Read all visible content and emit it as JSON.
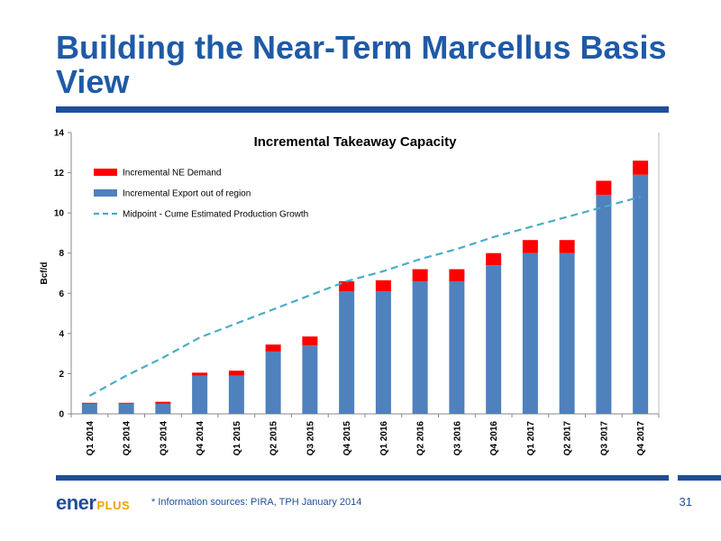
{
  "slide": {
    "title": "Building the Near-Term Marcellus Basis View",
    "footnote": "* Information sources: PIRA, TPH January 2014",
    "page_number": "31",
    "logo": {
      "part1": "ener",
      "part2": "PLUS"
    }
  },
  "colors": {
    "title": "#1f5aa6",
    "rule": "#1f4e9a",
    "export_bar": "#4f81bd",
    "demand_bar": "#ff0000",
    "production_line": "#4bacc6"
  },
  "chart_data": {
    "type": "bar",
    "stacked": true,
    "title": "Incremental Takeaway Capacity",
    "ylabel": "Bcf/d",
    "xlabel": "",
    "ylim": [
      0,
      14
    ],
    "yticks": [
      0,
      2,
      4,
      6,
      8,
      10,
      12,
      14
    ],
    "grid": false,
    "legend_position": "top-left",
    "categories": [
      "Q1 2014",
      "Q2 2014",
      "Q3 2014",
      "Q4 2014",
      "Q1 2015",
      "Q2 2015",
      "Q3 2015",
      "Q4 2015",
      "Q1 2016",
      "Q2 2016",
      "Q3 2016",
      "Q4 2016",
      "Q1 2017",
      "Q2 2017",
      "Q3 2017",
      "Q4 2017"
    ],
    "series": [
      {
        "name": "Incremental Export out of region",
        "kind": "bar",
        "values": [
          0.5,
          0.5,
          0.5,
          1.9,
          1.9,
          3.1,
          3.4,
          6.1,
          6.1,
          6.6,
          6.6,
          7.4,
          8.0,
          8.0,
          10.9,
          11.9
        ]
      },
      {
        "name": "Incremental NE Demand",
        "kind": "bar",
        "values": [
          0.05,
          0.05,
          0.1,
          0.15,
          0.25,
          0.35,
          0.45,
          0.5,
          0.55,
          0.6,
          0.6,
          0.6,
          0.65,
          0.65,
          0.7,
          0.7
        ]
      },
      {
        "name": "Midpoint - Cume Estimated Production Growth",
        "kind": "line",
        "values": [
          0.9,
          1.9,
          2.8,
          3.8,
          4.5,
          5.2,
          5.9,
          6.6,
          7.1,
          7.7,
          8.2,
          8.8,
          9.3,
          9.8,
          10.3,
          10.8
        ]
      }
    ],
    "legend_order": [
      "Incremental NE Demand",
      "Incremental Export out of region",
      "Midpoint - Cume Estimated Production Growth"
    ]
  }
}
